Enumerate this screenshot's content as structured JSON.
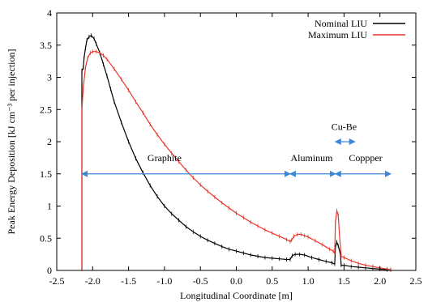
{
  "chart_data": {
    "type": "line",
    "title": "",
    "xlabel": "Longitudinal Coordinate [m]",
    "ylabel": "Peak Energy Deposition [kJ cm⁻³ per injection]",
    "xlim": [
      -2.5,
      2.5
    ],
    "ylim": [
      0,
      4
    ],
    "x_ticks": [
      -2.5,
      -2.0,
      -1.5,
      -1.0,
      -0.5,
      0.0,
      0.5,
      1.0,
      1.5,
      2.0,
      2.5
    ],
    "x_tick_labels": [
      "-2.5",
      "-2.0",
      "-1.5",
      "-1.0",
      "-0.5",
      "0.0",
      "0.5",
      "1.0",
      "1.5",
      "2.0",
      "2.5"
    ],
    "y_ticks": [
      0,
      0.5,
      1,
      1.5,
      2,
      2.5,
      3,
      3.5,
      4
    ],
    "y_tick_labels": [
      "0",
      "0.5",
      "1",
      "1.5",
      "2",
      "2.5",
      "3",
      "3.5",
      "4"
    ],
    "grid": false,
    "legend_position": "top-right",
    "series": [
      {
        "name": "Nominal LIU",
        "color": "#000000",
        "points": [
          [
            -2.15,
            0
          ],
          [
            -2.15,
            3.1
          ],
          [
            -2.13,
            3.15
          ],
          [
            -2.12,
            3.3
          ],
          [
            -2.1,
            3.45
          ],
          [
            -2.08,
            3.58
          ],
          [
            -2.05,
            3.63
          ],
          [
            -2.02,
            3.65
          ],
          [
            -1.98,
            3.6
          ],
          [
            -1.95,
            3.52
          ],
          [
            -1.9,
            3.38
          ],
          [
            -1.85,
            3.2
          ],
          [
            -1.8,
            3.02
          ],
          [
            -1.75,
            2.82
          ],
          [
            -1.7,
            2.62
          ],
          [
            -1.6,
            2.3
          ],
          [
            -1.5,
            2.0
          ],
          [
            -1.4,
            1.74
          ],
          [
            -1.3,
            1.52
          ],
          [
            -1.2,
            1.32
          ],
          [
            -1.1,
            1.15
          ],
          [
            -1.0,
            1.0
          ],
          [
            -0.9,
            0.88
          ],
          [
            -0.8,
            0.78
          ],
          [
            -0.7,
            0.68
          ],
          [
            -0.6,
            0.6
          ],
          [
            -0.5,
            0.53
          ],
          [
            -0.4,
            0.47
          ],
          [
            -0.3,
            0.42
          ],
          [
            -0.2,
            0.37
          ],
          [
            -0.1,
            0.33
          ],
          [
            0.0,
            0.3
          ],
          [
            0.1,
            0.27
          ],
          [
            0.2,
            0.24
          ],
          [
            0.3,
            0.22
          ],
          [
            0.4,
            0.2
          ],
          [
            0.5,
            0.19
          ],
          [
            0.6,
            0.18
          ],
          [
            0.7,
            0.17
          ],
          [
            0.75,
            0.17
          ],
          [
            0.78,
            0.23
          ],
          [
            0.82,
            0.25
          ],
          [
            0.88,
            0.25
          ],
          [
            0.95,
            0.24
          ],
          [
            1.05,
            0.2
          ],
          [
            1.15,
            0.17
          ],
          [
            1.25,
            0.14
          ],
          [
            1.33,
            0.12
          ],
          [
            1.37,
            0.1
          ],
          [
            1.38,
            0.36
          ],
          [
            1.4,
            0.44
          ],
          [
            1.42,
            0.38
          ],
          [
            1.45,
            0.25
          ],
          [
            1.46,
            0.08
          ],
          [
            1.5,
            0.08
          ],
          [
            1.6,
            0.06
          ],
          [
            1.7,
            0.05
          ],
          [
            1.8,
            0.04
          ],
          [
            1.9,
            0.03
          ],
          [
            2.0,
            0.02
          ],
          [
            2.1,
            0.01
          ],
          [
            2.15,
            0.01
          ]
        ]
      },
      {
        "name": "Maximum LIU",
        "color": "#e8342a",
        "points": [
          [
            -2.15,
            0
          ],
          [
            -2.15,
            2.5
          ],
          [
            -2.13,
            2.85
          ],
          [
            -2.1,
            3.15
          ],
          [
            -2.07,
            3.3
          ],
          [
            -2.03,
            3.38
          ],
          [
            -2.0,
            3.4
          ],
          [
            -1.95,
            3.4
          ],
          [
            -1.9,
            3.38
          ],
          [
            -1.85,
            3.34
          ],
          [
            -1.8,
            3.28
          ],
          [
            -1.7,
            3.13
          ],
          [
            -1.6,
            2.97
          ],
          [
            -1.5,
            2.8
          ],
          [
            -1.4,
            2.62
          ],
          [
            -1.3,
            2.45
          ],
          [
            -1.2,
            2.27
          ],
          [
            -1.1,
            2.11
          ],
          [
            -1.0,
            1.96
          ],
          [
            -0.9,
            1.82
          ],
          [
            -0.8,
            1.69
          ],
          [
            -0.7,
            1.56
          ],
          [
            -0.6,
            1.44
          ],
          [
            -0.5,
            1.33
          ],
          [
            -0.4,
            1.23
          ],
          [
            -0.3,
            1.14
          ],
          [
            -0.2,
            1.05
          ],
          [
            -0.1,
            0.97
          ],
          [
            0.0,
            0.89
          ],
          [
            0.1,
            0.82
          ],
          [
            0.2,
            0.75
          ],
          [
            0.3,
            0.69
          ],
          [
            0.4,
            0.63
          ],
          [
            0.5,
            0.58
          ],
          [
            0.6,
            0.53
          ],
          [
            0.7,
            0.48
          ],
          [
            0.75,
            0.45
          ],
          [
            0.77,
            0.47
          ],
          [
            0.8,
            0.53
          ],
          [
            0.85,
            0.56
          ],
          [
            0.9,
            0.56
          ],
          [
            0.95,
            0.54
          ],
          [
            1.0,
            0.52
          ],
          [
            1.1,
            0.46
          ],
          [
            1.2,
            0.4
          ],
          [
            1.3,
            0.33
          ],
          [
            1.35,
            0.3
          ],
          [
            1.37,
            0.27
          ],
          [
            1.38,
            0.75
          ],
          [
            1.4,
            0.93
          ],
          [
            1.42,
            0.85
          ],
          [
            1.44,
            0.5
          ],
          [
            1.46,
            0.22
          ],
          [
            1.5,
            0.2
          ],
          [
            1.6,
            0.15
          ],
          [
            1.7,
            0.11
          ],
          [
            1.8,
            0.08
          ],
          [
            1.9,
            0.06
          ],
          [
            2.0,
            0.04
          ],
          [
            2.1,
            0.02
          ],
          [
            2.15,
            0.01
          ]
        ]
      }
    ],
    "annotations": [
      {
        "text": "Graphite",
        "x": -1.0,
        "y": 1.7
      },
      {
        "text": "Aluminum",
        "x": 1.05,
        "y": 1.7
      },
      {
        "text": "Coppper",
        "x": 1.8,
        "y": 1.7
      },
      {
        "text": "Cu-Be",
        "x": 1.5,
        "y": 2.18
      }
    ],
    "arrows": [
      {
        "from": [
          -2.15,
          1.5
        ],
        "to": [
          0.75,
          1.5
        ],
        "color": "#3c87d8"
      },
      {
        "from": [
          0.75,
          1.5
        ],
        "to": [
          1.38,
          1.5
        ],
        "color": "#3c87d8"
      },
      {
        "from": [
          1.38,
          1.5
        ],
        "to": [
          2.15,
          1.5
        ],
        "color": "#3c87d8"
      },
      {
        "from": [
          1.38,
          2.0
        ],
        "to": [
          1.65,
          2.0
        ],
        "color": "#3c87d8"
      }
    ]
  }
}
